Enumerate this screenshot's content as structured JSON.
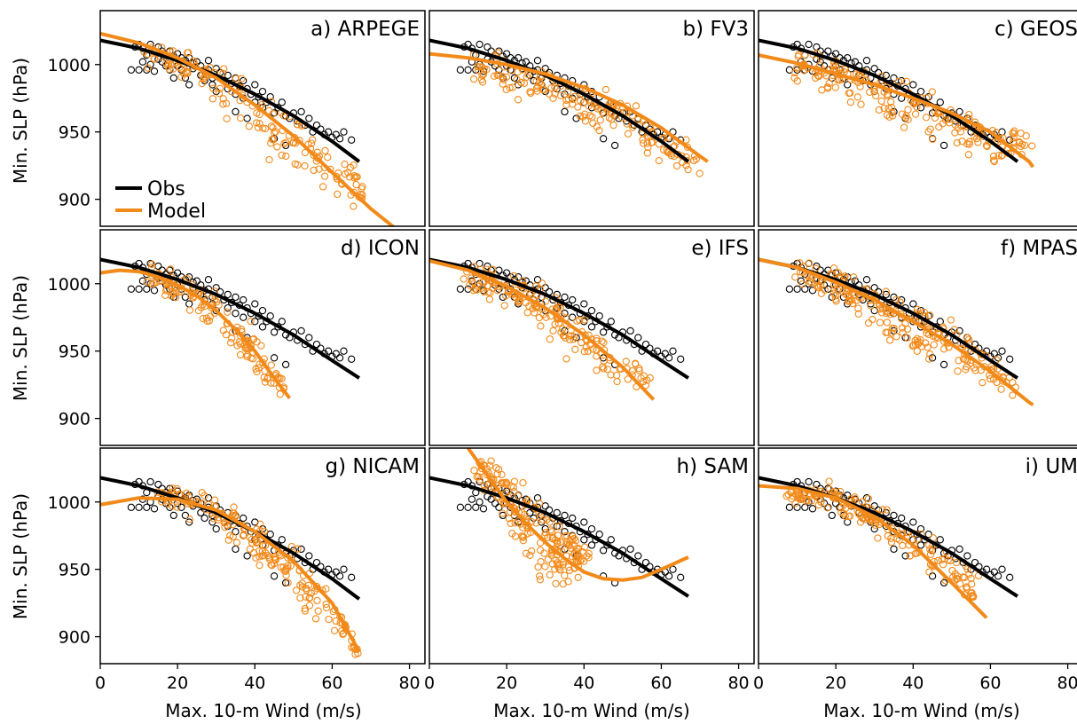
{
  "colors": {
    "obs": "#000000",
    "model": "#f28a1a",
    "frame": "#000000"
  },
  "labels": {
    "ylabel": "Min. SLP (hPa)",
    "xlabel": "Max. 10-m Wind (m/s)",
    "legend_obs": "Obs",
    "legend_model": "Model"
  },
  "legend_panel_index": 0,
  "legend_placement": "lower-left",
  "chart_data": [
    {
      "type": "scatter",
      "panel_label": "a) ARPEGE",
      "xlim": [
        0,
        84
      ],
      "ylim": [
        880,
        1040
      ],
      "xticks": [
        0,
        20,
        40,
        60,
        80
      ],
      "yticks": [
        900,
        950,
        1000
      ],
      "grid": false,
      "obs_fit": {
        "x": [
          0,
          10,
          20,
          30,
          40,
          50,
          60,
          67
        ],
        "y": [
          1018,
          1012,
          1003,
          992,
          978,
          962,
          943,
          928
        ]
      },
      "model_fit": {
        "x": [
          0,
          10,
          20,
          30,
          40,
          50,
          60,
          70,
          80
        ],
        "y": [
          1023,
          1016,
          1005,
          990,
          970,
          947,
          920,
          893,
          870
        ]
      },
      "model_points": {
        "center": [
          [
            12,
            1008
          ],
          [
            18,
            1003
          ],
          [
            24,
            996
          ],
          [
            30,
            987
          ],
          [
            38,
            970
          ],
          [
            45,
            955
          ],
          [
            52,
            940
          ],
          [
            60,
            922
          ],
          [
            70,
            903
          ]
        ],
        "spread": [
          10,
          10,
          12,
          15,
          22,
          25,
          25,
          20,
          18
        ],
        "n": 160
      }
    },
    {
      "type": "scatter",
      "panel_label": "b) FV3",
      "xlim": [
        0,
        84
      ],
      "ylim": [
        880,
        1040
      ],
      "xticks": [
        0,
        20,
        40,
        60,
        80
      ],
      "yticks": [
        900,
        950,
        1000
      ],
      "grid": false,
      "obs_fit": {
        "x": [
          0,
          10,
          20,
          30,
          40,
          50,
          60,
          67
        ],
        "y": [
          1018,
          1012,
          1003,
          992,
          978,
          962,
          943,
          928
        ]
      },
      "model_fit": {
        "x": [
          0,
          10,
          20,
          30,
          40,
          50,
          60,
          70,
          72
        ],
        "y": [
          1008,
          1005,
          1000,
          993,
          983,
          970,
          953,
          932,
          928
        ]
      },
      "model_points": {
        "center": [
          [
            12,
            1000
          ],
          [
            18,
            995
          ],
          [
            25,
            988
          ],
          [
            32,
            982
          ],
          [
            40,
            972
          ],
          [
            48,
            962
          ],
          [
            55,
            950
          ],
          [
            62,
            938
          ],
          [
            70,
            928
          ]
        ],
        "spread": [
          12,
          14,
          15,
          15,
          16,
          16,
          16,
          14,
          10
        ],
        "n": 170
      }
    },
    {
      "type": "scatter",
      "panel_label": "c) GEOS",
      "xlim": [
        0,
        84
      ],
      "ylim": [
        880,
        1040
      ],
      "xticks": [
        0,
        20,
        40,
        60,
        80
      ],
      "yticks": [
        900,
        950,
        1000
      ],
      "grid": false,
      "obs_fit": {
        "x": [
          0,
          10,
          20,
          30,
          40,
          50,
          60,
          67
        ],
        "y": [
          1018,
          1012,
          1003,
          992,
          978,
          962,
          943,
          928
        ]
      },
      "model_fit": {
        "x": [
          0,
          10,
          20,
          30,
          40,
          50,
          60,
          70,
          71
        ],
        "y": [
          1007,
          1001,
          993,
          985,
          975,
          964,
          950,
          928,
          924
        ]
      },
      "model_points": {
        "center": [
          [
            10,
            1000
          ],
          [
            18,
            993
          ],
          [
            25,
            985
          ],
          [
            32,
            978
          ],
          [
            40,
            968
          ],
          [
            48,
            958
          ],
          [
            55,
            948
          ],
          [
            62,
            935
          ],
          [
            70,
            945
          ]
        ],
        "spread": [
          12,
          15,
          18,
          18,
          18,
          18,
          18,
          16,
          8
        ],
        "n": 190
      }
    },
    {
      "type": "scatter",
      "panel_label": "d) ICON",
      "xlim": [
        0,
        84
      ],
      "ylim": [
        880,
        1040
      ],
      "xticks": [
        0,
        20,
        40,
        60,
        80
      ],
      "yticks": [
        900,
        950,
        1000
      ],
      "grid": false,
      "obs_fit": {
        "x": [
          0,
          10,
          20,
          30,
          40,
          50,
          60,
          67
        ],
        "y": [
          1018,
          1012,
          1003,
          992,
          978,
          962,
          943,
          930
        ]
      },
      "model_fit": {
        "x": [
          0,
          5,
          10,
          15,
          20,
          25,
          30,
          35,
          40,
          45,
          49
        ],
        "y": [
          1008,
          1010,
          1009,
          1005,
          999,
          991,
          980,
          966,
          950,
          930,
          915
        ]
      },
      "model_points": {
        "center": [
          [
            12,
            1006
          ],
          [
            18,
            1002
          ],
          [
            22,
            996
          ],
          [
            27,
            985
          ],
          [
            32,
            972
          ],
          [
            37,
            960
          ],
          [
            42,
            940
          ],
          [
            48,
            921
          ]
        ],
        "spread": [
          8,
          10,
          12,
          15,
          18,
          18,
          16,
          6
        ],
        "n": 130
      }
    },
    {
      "type": "scatter",
      "panel_label": "e) IFS",
      "xlim": [
        0,
        84
      ],
      "ylim": [
        880,
        1040
      ],
      "xticks": [
        0,
        20,
        40,
        60,
        80
      ],
      "yticks": [
        900,
        950,
        1000
      ],
      "grid": false,
      "obs_fit": {
        "x": [
          0,
          10,
          20,
          30,
          40,
          50,
          60,
          67
        ],
        "y": [
          1018,
          1012,
          1003,
          992,
          978,
          962,
          943,
          930
        ]
      },
      "model_fit": {
        "x": [
          0,
          10,
          20,
          30,
          40,
          50,
          58
        ],
        "y": [
          1017,
          1010,
          998,
          982,
          962,
          938,
          914
        ]
      },
      "model_points": {
        "center": [
          [
            10,
            1005
          ],
          [
            16,
            1000
          ],
          [
            22,
            994
          ],
          [
            28,
            985
          ],
          [
            34,
            972
          ],
          [
            40,
            958
          ],
          [
            46,
            945
          ],
          [
            52,
            935
          ],
          [
            56,
            930
          ]
        ],
        "spread": [
          10,
          12,
          15,
          18,
          20,
          20,
          18,
          14,
          8
        ],
        "n": 170
      }
    },
    {
      "type": "scatter",
      "panel_label": "f) MPAS",
      "xlim": [
        0,
        84
      ],
      "ylim": [
        880,
        1040
      ],
      "xticks": [
        0,
        20,
        40,
        60,
        80
      ],
      "yticks": [
        900,
        950,
        1000
      ],
      "grid": false,
      "obs_fit": {
        "x": [
          0,
          10,
          20,
          30,
          40,
          50,
          60,
          67
        ],
        "y": [
          1018,
          1012,
          1003,
          992,
          978,
          962,
          943,
          930
        ]
      },
      "model_fit": {
        "x": [
          0,
          10,
          20,
          30,
          40,
          50,
          60,
          70,
          71
        ],
        "y": [
          1018,
          1012,
          1001,
          988,
          972,
          955,
          935,
          912,
          910
        ]
      },
      "model_points": {
        "center": [
          [
            10,
            1008
          ],
          [
            16,
            1003
          ],
          [
            22,
            996
          ],
          [
            28,
            988
          ],
          [
            35,
            978
          ],
          [
            42,
            965
          ],
          [
            50,
            952
          ],
          [
            58,
            940
          ],
          [
            66,
            925
          ]
        ],
        "spread": [
          10,
          14,
          16,
          18,
          20,
          20,
          18,
          15,
          10
        ],
        "n": 200
      }
    },
    {
      "type": "scatter",
      "panel_label": "g) NICAM",
      "xlim": [
        0,
        84
      ],
      "ylim": [
        880,
        1040
      ],
      "xticks": [
        0,
        20,
        40,
        60,
        80
      ],
      "yticks": [
        900,
        950,
        1000
      ],
      "grid": false,
      "obs_fit": {
        "x": [
          0,
          10,
          20,
          30,
          40,
          50,
          60,
          67
        ],
        "y": [
          1018,
          1012,
          1003,
          992,
          978,
          962,
          943,
          928
        ]
      },
      "model_fit": {
        "x": [
          0,
          10,
          20,
          30,
          40,
          50,
          60,
          67
        ],
        "y": [
          998,
          1003,
          1002,
          994,
          978,
          956,
          925,
          889
        ]
      },
      "model_points": {
        "center": [
          [
            15,
            1006
          ],
          [
            20,
            1003
          ],
          [
            26,
            998
          ],
          [
            32,
            988
          ],
          [
            38,
            976
          ],
          [
            44,
            963
          ],
          [
            50,
            945
          ],
          [
            56,
            928
          ],
          [
            62,
            910
          ],
          [
            66,
            890
          ]
        ],
        "spread": [
          8,
          10,
          12,
          14,
          16,
          18,
          20,
          20,
          16,
          6
        ],
        "n": 180
      }
    },
    {
      "type": "scatter",
      "panel_label": "h) SAM",
      "xlim": [
        0,
        84
      ],
      "ylim": [
        880,
        1040
      ],
      "xticks": [
        0,
        20,
        40,
        60,
        80
      ],
      "yticks": [
        900,
        950,
        1000
      ],
      "grid": false,
      "obs_fit": {
        "x": [
          0,
          10,
          20,
          30,
          40,
          50,
          60,
          67
        ],
        "y": [
          1018,
          1012,
          1003,
          992,
          978,
          962,
          943,
          930
        ]
      },
      "model_fit": {
        "x": [
          10,
          15,
          20,
          25,
          30,
          35,
          40,
          45,
          50,
          55,
          60,
          67
        ],
        "y": [
          1040,
          1020,
          1000,
          984,
          970,
          958,
          948,
          943,
          942,
          944,
          950,
          959
        ]
      },
      "model_points": {
        "center": [
          [
            12,
            1025
          ],
          [
            15,
            1020
          ],
          [
            18,
            1012
          ],
          [
            20,
            1003
          ],
          [
            22,
            995
          ],
          [
            25,
            985
          ],
          [
            28,
            972
          ],
          [
            32,
            965
          ],
          [
            36,
            960
          ],
          [
            40,
            960
          ]
        ],
        "spread": [
          12,
          14,
          18,
          22,
          25,
          28,
          28,
          25,
          20,
          12
        ],
        "n": 190
      }
    },
    {
      "type": "scatter",
      "panel_label": "i) UM",
      "xlim": [
        0,
        84
      ],
      "ylim": [
        880,
        1040
      ],
      "xticks": [
        0,
        20,
        40,
        60,
        80
      ],
      "yticks": [
        900,
        950,
        1000
      ],
      "grid": false,
      "obs_fit": {
        "x": [
          0,
          10,
          20,
          30,
          40,
          50,
          60,
          67
        ],
        "y": [
          1018,
          1012,
          1003,
          992,
          978,
          962,
          943,
          930
        ]
      },
      "model_fit": {
        "x": [
          0,
          10,
          20,
          30,
          40,
          50,
          59
        ],
        "y": [
          1012,
          1010,
          1003,
          989,
          968,
          940,
          914
        ]
      },
      "model_points": {
        "center": [
          [
            8,
            1004
          ],
          [
            14,
            1006
          ],
          [
            20,
            1003
          ],
          [
            26,
            995
          ],
          [
            32,
            985
          ],
          [
            38,
            972
          ],
          [
            44,
            960
          ],
          [
            50,
            948
          ],
          [
            56,
            935
          ]
        ],
        "spread": [
          6,
          8,
          10,
          12,
          14,
          16,
          16,
          14,
          10
        ],
        "n": 170
      }
    }
  ],
  "obs_points": [
    [
      8,
      996
    ],
    [
      9,
      1013
    ],
    [
      10,
      1015
    ],
    [
      11,
      1012
    ],
    [
      12,
      1007
    ],
    [
      13,
      1015
    ],
    [
      10,
      996
    ],
    [
      12,
      996
    ],
    [
      14,
      995
    ],
    [
      11,
      1002
    ],
    [
      13,
      1000
    ],
    [
      15,
      1013
    ],
    [
      16,
      1010
    ],
    [
      17,
      1007
    ],
    [
      15,
      1004
    ],
    [
      16,
      1002
    ],
    [
      18,
      1010
    ],
    [
      19,
      1006
    ],
    [
      17,
      999
    ],
    [
      18,
      996
    ],
    [
      19,
      990
    ],
    [
      20,
      1008
    ],
    [
      21,
      1005
    ],
    [
      22,
      1003
    ],
    [
      20,
      999
    ],
    [
      21,
      996
    ],
    [
      22,
      990
    ],
    [
      23,
      1005
    ],
    [
      24,
      1001
    ],
    [
      24,
      997
    ],
    [
      23,
      985
    ],
    [
      25,
      1002
    ],
    [
      26,
      999
    ],
    [
      27,
      995
    ],
    [
      26,
      992
    ],
    [
      28,
      1003
    ],
    [
      28,
      996
    ],
    [
      27,
      988
    ],
    [
      29,
      990
    ],
    [
      29,
      985
    ],
    [
      30,
      997
    ],
    [
      30,
      980
    ],
    [
      31,
      994
    ],
    [
      32,
      988
    ],
    [
      33,
      992
    ],
    [
      33,
      982
    ],
    [
      34,
      986
    ],
    [
      35,
      990
    ],
    [
      35,
      978
    ],
    [
      35,
      965
    ],
    [
      36,
      984
    ],
    [
      37,
      988
    ],
    [
      37,
      975
    ],
    [
      38,
      982
    ],
    [
      38,
      960
    ],
    [
      39,
      978
    ],
    [
      40,
      985
    ],
    [
      40,
      972
    ],
    [
      41,
      976
    ],
    [
      42,
      980
    ],
    [
      42,
      968
    ],
    [
      43,
      972
    ],
    [
      44,
      976
    ],
    [
      45,
      964
    ],
    [
      45,
      945
    ],
    [
      46,
      968
    ],
    [
      47,
      972
    ],
    [
      48,
      962
    ],
    [
      48,
      940
    ],
    [
      49,
      960
    ],
    [
      50,
      964
    ],
    [
      51,
      958
    ],
    [
      52,
      965
    ],
    [
      53,
      955
    ],
    [
      54,
      960
    ],
    [
      55,
      950
    ],
    [
      56,
      955
    ],
    [
      57,
      952
    ],
    [
      58,
      948
    ],
    [
      59,
      950
    ],
    [
      60,
      946
    ],
    [
      61,
      948
    ],
    [
      62,
      945
    ],
    [
      63,
      950
    ],
    [
      65,
      944
    ]
  ]
}
